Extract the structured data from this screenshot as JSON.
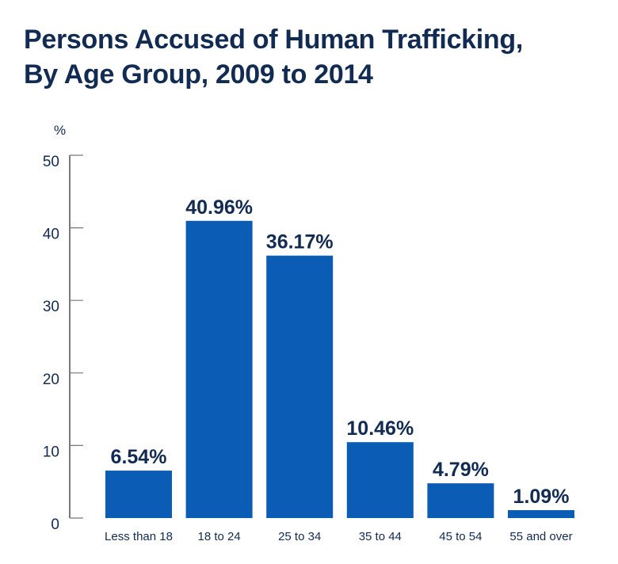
{
  "chart_data": {
    "type": "bar",
    "title": "Persons Accused of Human Trafficking, By Age Group, 2009 to 2014",
    "ylabel": "%",
    "xlabel": "",
    "ylim": [
      0,
      50
    ],
    "yticks": [
      0,
      10,
      20,
      30,
      40,
      50
    ],
    "categories": [
      "Less than 18",
      "18 to 24",
      "25 to 34",
      "35 to 44",
      "45 to 54",
      "55 and over"
    ],
    "values": [
      6.54,
      40.96,
      36.17,
      10.46,
      4.79,
      1.09
    ],
    "data_labels": [
      "6.54%",
      "40.96%",
      "36.17%",
      "10.46%",
      "4.79%",
      "1.09%"
    ],
    "grid": false,
    "colors": {
      "bar": "#0a5cb5",
      "text": "#112b52",
      "axis": "#333333"
    }
  }
}
